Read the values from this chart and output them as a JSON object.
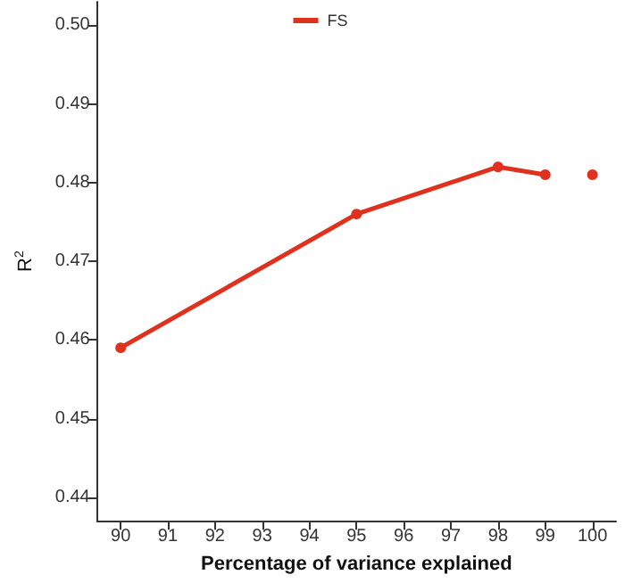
{
  "chart_data": {
    "type": "line",
    "xlabel": "Percentage of variance explained",
    "ylabel": "R$^{2}$",
    "xlim": [
      89.5,
      100.5
    ],
    "xticks": [
      90,
      91,
      92,
      93,
      94,
      95,
      96,
      97,
      98,
      99,
      100
    ],
    "ylim": [
      0.437,
      0.503
    ],
    "yticks": [
      0.44,
      0.45,
      0.46,
      0.47,
      0.48,
      0.49,
      {
        "value": 0.5,
        "label": "0.50"
      }
    ],
    "series": [
      {
        "name": "FS",
        "color": "#e0301e",
        "x": [
          90,
          95,
          98,
          99
        ],
        "values": [
          0.459,
          0.476,
          0.482,
          0.481
        ]
      },
      {
        "type": "scatter",
        "color": "#e0301e",
        "x": [
          100
        ],
        "values": [
          0.481
        ]
      }
    ],
    "marker": "circle",
    "grid": false,
    "legend": "top"
  }
}
